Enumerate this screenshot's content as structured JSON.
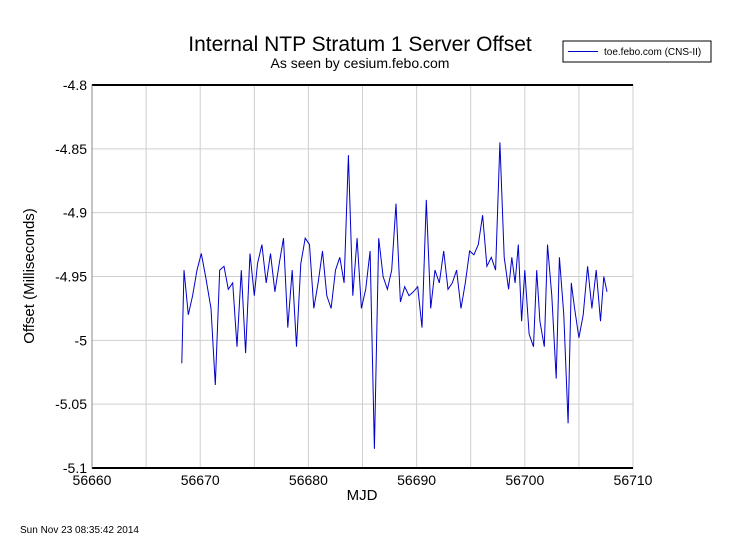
{
  "chart_data": {
    "type": "line",
    "title": "Internal NTP Stratum 1 Server Offset",
    "subtitle": "As seen by cesium.febo.com",
    "xlabel": "MJD",
    "ylabel": "Offset (Milliseconds)",
    "xlim": [
      56660,
      56710
    ],
    "ylim": [
      -5.1,
      -4.8
    ],
    "xticks": [
      56660,
      56670,
      56680,
      56690,
      56700,
      56710
    ],
    "xtick_labels": [
      "56660",
      "56670",
      "56680",
      "56690",
      "56700",
      "56710"
    ],
    "yticks": [
      -4.8,
      -4.85,
      -4.9,
      -4.95,
      -5,
      -5.05,
      -5.1
    ],
    "ytick_labels": [
      "-4.8",
      "-4.85",
      "-4.9",
      "-4.95",
      "-5",
      "-5.05",
      "-5.1"
    ],
    "grid": true,
    "legend_position": "top-right",
    "series": [
      {
        "name": "toe.febo.com (CNS-II)",
        "color": "#0000cc",
        "x": [
          56668.3,
          56668.5,
          56668.9,
          56669.3,
          56669.7,
          56670.1,
          56670.5,
          56671.0,
          56671.4,
          56671.8,
          56672.2,
          56672.6,
          56673.0,
          56673.4,
          56673.8,
          56674.2,
          56674.6,
          56675.0,
          56675.3,
          56675.7,
          56676.1,
          56676.5,
          56676.9,
          56677.3,
          56677.7,
          56678.1,
          56678.5,
          56678.9,
          56679.3,
          56679.7,
          56680.1,
          56680.5,
          56680.9,
          56681.3,
          56681.7,
          56682.1,
          56682.5,
          56682.9,
          56683.3,
          56683.7,
          56684.1,
          56684.5,
          56684.9,
          56685.3,
          56685.7,
          56686.1,
          56686.5,
          56686.9,
          56687.3,
          56687.7,
          56688.1,
          56688.5,
          56688.9,
          56689.3,
          56689.7,
          56690.1,
          56690.5,
          56690.9,
          56691.3,
          56691.7,
          56692.1,
          56692.5,
          56692.9,
          56693.3,
          56693.7,
          56694.1,
          56694.5,
          56694.9,
          56695.3,
          56695.7,
          56696.1,
          56696.5,
          56696.9,
          56697.3,
          56697.7,
          56698.1,
          56698.5,
          56698.8,
          56699.1,
          56699.4,
          56699.7,
          56700.0,
          56700.4,
          56700.8,
          56701.1,
          56701.4,
          56701.8,
          56702.1,
          56702.5,
          56702.9,
          56703.2,
          56703.6,
          56704.0,
          56704.3,
          56704.6,
          56705.0,
          56705.4,
          56705.8,
          56706.2,
          56706.6,
          56707.0,
          56707.3,
          56707.6
        ],
        "values": [
          -5.018,
          -4.945,
          -4.98,
          -4.965,
          -4.945,
          -4.932,
          -4.95,
          -4.975,
          -5.035,
          -4.945,
          -4.942,
          -4.96,
          -4.955,
          -5.005,
          -4.945,
          -5.01,
          -4.932,
          -4.965,
          -4.94,
          -4.925,
          -4.955,
          -4.932,
          -4.962,
          -4.94,
          -4.92,
          -4.99,
          -4.945,
          -5.005,
          -4.94,
          -4.92,
          -4.925,
          -4.975,
          -4.955,
          -4.93,
          -4.965,
          -4.975,
          -4.945,
          -4.935,
          -4.955,
          -4.855,
          -4.965,
          -4.92,
          -4.975,
          -4.96,
          -4.93,
          -5.085,
          -4.92,
          -4.95,
          -4.96,
          -4.945,
          -4.893,
          -4.97,
          -4.958,
          -4.965,
          -4.962,
          -4.958,
          -4.99,
          -4.89,
          -4.975,
          -4.945,
          -4.955,
          -4.93,
          -4.96,
          -4.955,
          -4.945,
          -4.975,
          -4.955,
          -4.93,
          -4.933,
          -4.925,
          -4.902,
          -4.942,
          -4.935,
          -4.945,
          -4.845,
          -4.935,
          -4.96,
          -4.935,
          -4.955,
          -4.925,
          -4.985,
          -4.945,
          -4.995,
          -5.005,
          -4.945,
          -4.985,
          -5.005,
          -4.925,
          -4.965,
          -5.03,
          -4.935,
          -4.98,
          -5.065,
          -4.955,
          -4.975,
          -4.998,
          -4.98,
          -4.942,
          -4.975,
          -4.945,
          -4.985,
          -4.95,
          -4.962
        ]
      }
    ],
    "footer_timestamp": "Sun Nov 23 08:35:42 2014"
  }
}
